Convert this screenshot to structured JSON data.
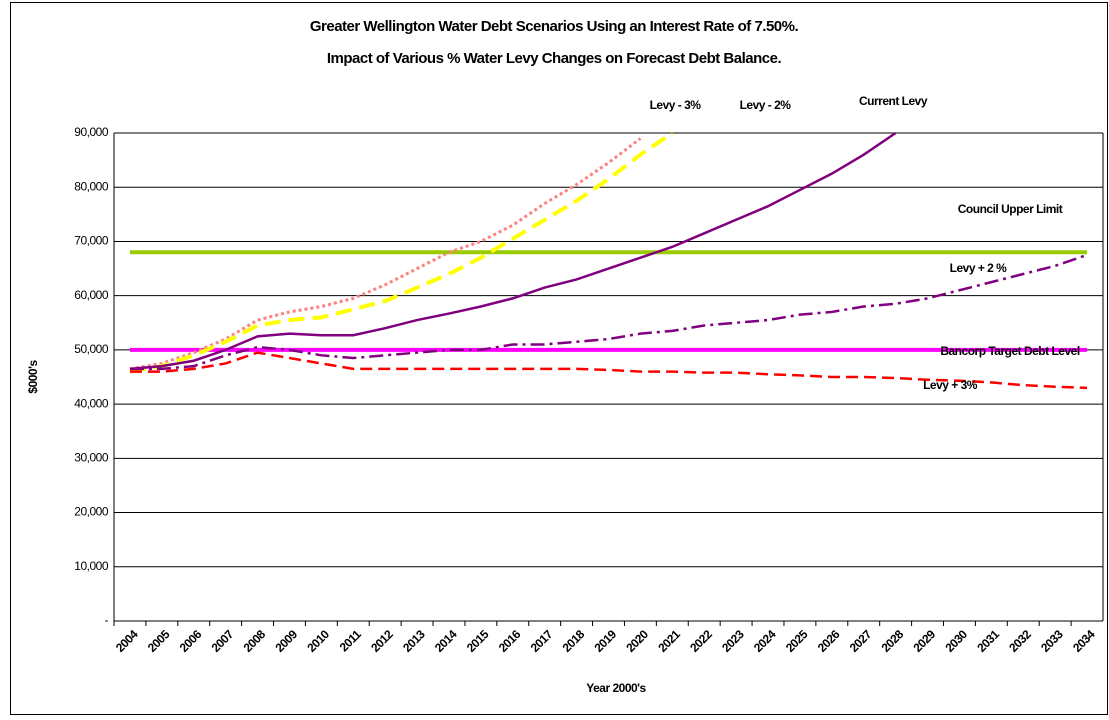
{
  "chart_data": {
    "type": "line",
    "title": "Greater Wellington Water Debt Scenarios Using an Interest Rate of 7.50%.",
    "subtitle": "Impact of Various % Water Levy Changes on Forecast Debt Balance.",
    "y_label": "$000's",
    "x_label": "Year 2000's",
    "categories": [
      "2004",
      "2005",
      "2006",
      "2007",
      "2008",
      "2009",
      "2010",
      "2011",
      "2012",
      "2013",
      "2014",
      "2015",
      "2016",
      "2017",
      "2018",
      "2019",
      "2020",
      "2021",
      "2022",
      "2023",
      "2024",
      "2025",
      "2026",
      "2027",
      "2028",
      "2029",
      "2030",
      "2031",
      "2032",
      "2033",
      "2034"
    ],
    "ylim": [
      0,
      90000
    ],
    "yticks": [
      {
        "value": 0,
        "label": "-"
      },
      {
        "value": 10000,
        "label": "10,000"
      },
      {
        "value": 20000,
        "label": "20,000"
      },
      {
        "value": 30000,
        "label": "30,000"
      },
      {
        "value": 40000,
        "label": "40,000"
      },
      {
        "value": 50000,
        "label": "50,000"
      },
      {
        "value": 60000,
        "label": "60,000"
      },
      {
        "value": 70000,
        "label": "70,000"
      },
      {
        "value": 80000,
        "label": "80,000"
      },
      {
        "value": 90000,
        "label": "90,000"
      }
    ],
    "grid": true,
    "series": [
      {
        "name": "Council  Upper Limit",
        "color": "#99cc00",
        "style": "solid-thick",
        "values": [
          68000,
          68000,
          68000,
          68000,
          68000,
          68000,
          68000,
          68000,
          68000,
          68000,
          68000,
          68000,
          68000,
          68000,
          68000,
          68000,
          68000,
          68000,
          68000,
          68000,
          68000,
          68000,
          68000,
          68000,
          68000,
          68000,
          68000,
          68000,
          68000,
          68000,
          68000
        ]
      },
      {
        "name": "Bancorp Target Debt Level",
        "color": "#ff00ff",
        "style": "solid-thick",
        "values": [
          50000,
          50000,
          50000,
          50000,
          50000,
          50000,
          50000,
          50000,
          50000,
          50000,
          50000,
          50000,
          50000,
          50000,
          50000,
          50000,
          50000,
          50000,
          50000,
          50000,
          50000,
          50000,
          50000,
          50000,
          50000,
          50000,
          50000,
          50000,
          50000,
          50000,
          50000
        ]
      },
      {
        "name": "Levy - 3%",
        "color": "#ff8080",
        "style": "dotted",
        "values": [
          46500,
          47500,
          49500,
          52000,
          55500,
          57000,
          58000,
          59500,
          62000,
          65000,
          68000,
          70000,
          73000,
          77000,
          80500,
          84500,
          89000,
          null,
          null,
          null,
          null,
          null,
          null,
          null,
          null,
          null,
          null,
          null,
          null,
          null,
          null
        ]
      },
      {
        "name": "Levy - 2%",
        "color": "#ffff00",
        "style": "dashed-thick",
        "values": [
          46000,
          47000,
          49000,
          51500,
          54500,
          55500,
          56000,
          57500,
          59000,
          61500,
          64000,
          67000,
          70500,
          74000,
          77500,
          81500,
          86000,
          90000,
          null,
          null,
          null,
          null,
          null,
          null,
          null,
          null,
          null,
          null,
          null,
          null,
          null
        ]
      },
      {
        "name": "Current Levy",
        "color": "#800080",
        "style": "solid",
        "values": [
          46500,
          47000,
          48000,
          50000,
          52500,
          53000,
          52700,
          52700,
          54000,
          55500,
          56700,
          58000,
          59500,
          61500,
          63000,
          65000,
          67000,
          69000,
          71500,
          74000,
          76500,
          79500,
          82500,
          86000,
          90000,
          null,
          null,
          null,
          null,
          null,
          null
        ]
      },
      {
        "name": "Levy + 2 %",
        "color": "#800080",
        "style": "dashdot",
        "values": [
          46500,
          46500,
          47000,
          49000,
          50500,
          50000,
          49000,
          48500,
          49000,
          49500,
          50000,
          50000,
          51000,
          51000,
          51500,
          52000,
          53000,
          53500,
          54500,
          55000,
          55500,
          56500,
          57000,
          58000,
          58500,
          59500,
          61000,
          62500,
          64000,
          65500,
          67500
        ]
      },
      {
        "name": "Levy + 3%",
        "color": "#ff0000",
        "style": "dashed",
        "values": [
          46000,
          46000,
          46500,
          47500,
          49500,
          48500,
          47500,
          46500,
          46500,
          46500,
          46500,
          46500,
          46500,
          46500,
          46500,
          46300,
          46000,
          46000,
          45800,
          45800,
          45500,
          45300,
          45000,
          45000,
          44800,
          44500,
          44300,
          44000,
          43500,
          43200,
          43000
        ]
      }
    ]
  }
}
